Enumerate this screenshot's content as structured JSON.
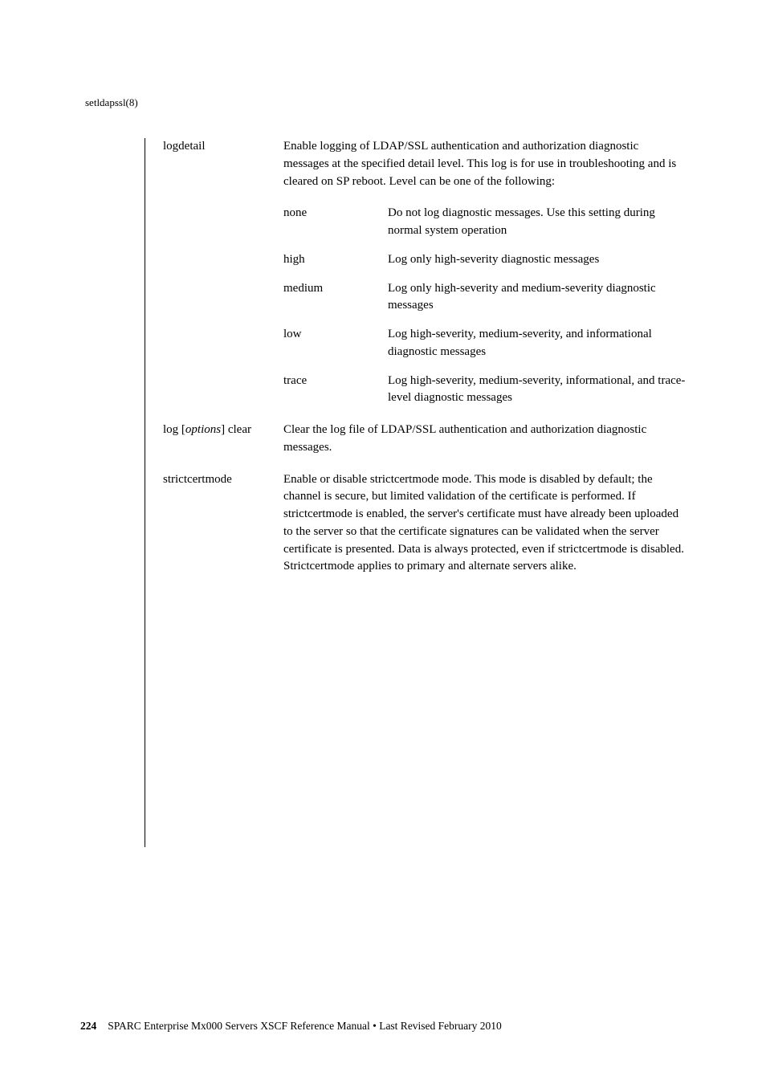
{
  "header": {
    "command": "setldapssl(8)"
  },
  "entries": {
    "logdetail": {
      "term": "logdetail",
      "intro": "Enable logging of LDAP/SSL authentication and authorization diagnostic messages at the specified detail level. This log is for use in troubleshooting and is cleared on SP reboot. Level can be one of the following:",
      "options": {
        "none": {
          "term": "none",
          "desc": "Do not log diagnostic messages. Use this setting during normal system operation"
        },
        "high": {
          "term": "high",
          "desc": "Log only high-severity diagnostic messages"
        },
        "medium": {
          "term": "medium",
          "desc": "Log only high-severity and medium-severity diagnostic messages"
        },
        "low": {
          "term": "low",
          "desc": "Log high-severity, medium-severity, and informational diagnostic messages"
        },
        "trace": {
          "term": "trace",
          "desc": "Log high-severity, medium-severity, informational, and trace-level diagnostic messages"
        }
      }
    },
    "logclear": {
      "term_prefix": "log [",
      "term_italic": "options",
      "term_suffix": "] clear",
      "desc": "Clear the log file of LDAP/SSL authentication and authorization diagnostic messages."
    },
    "strictcertmode": {
      "term": "strictcertmode",
      "desc": "Enable or disable strictcertmode mode. This mode is disabled by default; the channel is secure, but limited validation of the certificate is performed. If strictcertmode is enabled, the server's certificate must have already been uploaded to the server so that the certificate signatures can be validated when the server certificate is presented. Data is always protected, even if strictcertmode is disabled. Strictcertmode applies to primary and alternate servers alike."
    }
  },
  "footer": {
    "pagenum": "224",
    "text": "SPARC Enterprise Mx000 Servers XSCF Reference Manual • Last Revised February 2010"
  }
}
